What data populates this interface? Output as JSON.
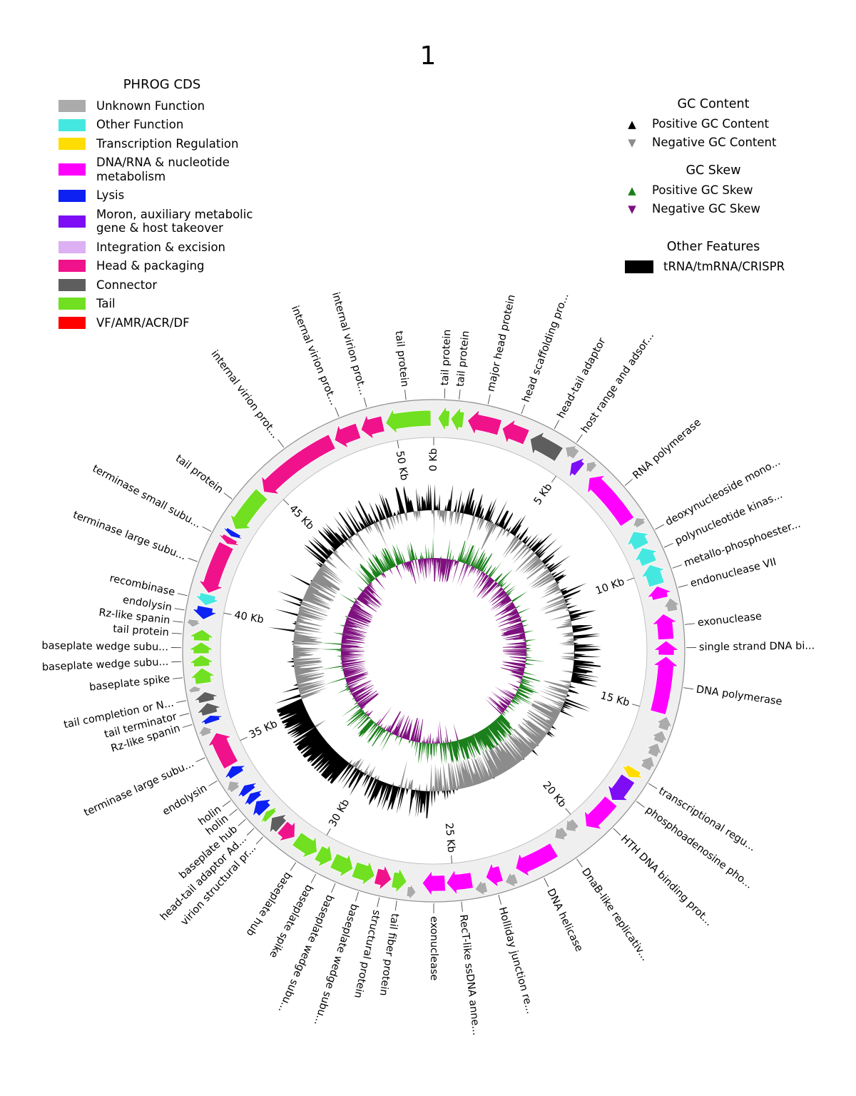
{
  "title": "1",
  "phrog_legend": {
    "title": "PHROG CDS",
    "items": [
      {
        "key": "unknown",
        "label": "Unknown Function",
        "color": "#ABABAB"
      },
      {
        "key": "other",
        "label": "Other Function",
        "color": "#45E8E0"
      },
      {
        "key": "transcription",
        "label": "Transcription Regulation",
        "color": "#FFDD00"
      },
      {
        "key": "dna",
        "label": "DNA/RNA & nucleotide\n metabolism",
        "color": "#FF00FF"
      },
      {
        "key": "lysis",
        "label": "Lysis",
        "color": "#0D21F2"
      },
      {
        "key": "moron",
        "label": "Moron, auxiliary metabolic\n gene & host takeover",
        "color": "#7D0DF4"
      },
      {
        "key": "integration",
        "label": "Integration & excision",
        "color": "#DCB0F2"
      },
      {
        "key": "head",
        "label": "Head & packaging",
        "color": "#F0128B"
      },
      {
        "key": "connector",
        "label": "Connector",
        "color": "#5E5E5E"
      },
      {
        "key": "tail",
        "label": "Tail",
        "color": "#70E021"
      },
      {
        "key": "vf",
        "label": "VF/AMR/ACR/DF",
        "color": "#FF0000"
      }
    ]
  },
  "gc_legend": {
    "content_title": "GC Content",
    "content_items": [
      {
        "label": "Positive GC Content",
        "color": "#000000",
        "dir": "up"
      },
      {
        "label": "Negative GC Content",
        "color": "#8C8C8C",
        "dir": "down"
      }
    ],
    "skew_title": "GC Skew",
    "skew_items": [
      {
        "label": "Positive GC Skew",
        "color": "#1B801B",
        "dir": "up"
      },
      {
        "label": "Negative GC Skew",
        "color": "#7E107E",
        "dir": "down"
      }
    ],
    "other_title": "Other Features",
    "other_items": [
      {
        "label": "tRNA/tmRNA/CRISPR",
        "color": "#000000"
      }
    ]
  },
  "chart_data": {
    "type": "circular-genome-map",
    "title": "1",
    "total_kb": 51.4,
    "tick_interval_kb": 5,
    "tick_unit": "Kb",
    "ticks": [
      "0 Kb",
      "5 Kb",
      "10 Kb",
      "15 Kb",
      "20 Kb",
      "25 Kb",
      "30 Kb",
      "35 Kb",
      "40 Kb",
      "45 Kb",
      "50 Kb"
    ],
    "category_colors": {
      "unknown": "#ABABAB",
      "other": "#45E8E0",
      "transcription": "#FFDD00",
      "dna": "#FF00FF",
      "lysis": "#0D21F2",
      "moron": "#7D0DF4",
      "integration": "#DCB0F2",
      "head": "#F0128B",
      "connector": "#5E5E5E",
      "tail": "#70E021",
      "vf": "#FF0000"
    },
    "genes": [
      {
        "s": 0.15,
        "e": 0.55,
        "cat": "tail",
        "dir": "ccw",
        "lane": "mid",
        "label": "tail protein"
      },
      {
        "s": 0.6,
        "e": 1.05,
        "cat": "tail",
        "dir": "ccw",
        "lane": "mid",
        "label": "tail protein"
      },
      {
        "s": 1.2,
        "e": 2.35,
        "cat": "head",
        "dir": "ccw",
        "lane": "mid",
        "label": "major head protein"
      },
      {
        "s": 2.45,
        "e": 3.35,
        "cat": "head",
        "dir": "ccw",
        "lane": "mid",
        "label": "head scaffolding pro..."
      },
      {
        "s": 3.5,
        "e": 4.65,
        "cat": "connector",
        "dir": "ccw",
        "lane": "mid",
        "label": "head-tail adaptor"
      },
      {
        "s": 4.7,
        "e": 5.15,
        "cat": "unknown",
        "dir": "ccw",
        "lane": "out",
        "label": "host range and adsor..."
      },
      {
        "s": 5.18,
        "e": 5.55,
        "cat": "moron",
        "dir": "ccw",
        "lane": "mid",
        "label": ""
      },
      {
        "s": 5.6,
        "e": 5.9,
        "cat": "unknown",
        "dir": "ccw",
        "lane": "out",
        "label": ""
      },
      {
        "s": 6.0,
        "e": 8.05,
        "cat": "dna",
        "dir": "ccw",
        "lane": "mid",
        "label": "RNA polymerase"
      },
      {
        "s": 8.1,
        "e": 8.4,
        "cat": "unknown",
        "dir": "ccw",
        "lane": "out",
        "label": ""
      },
      {
        "s": 8.45,
        "e": 9.05,
        "cat": "other",
        "dir": "ccw",
        "lane": "mid",
        "label": "deoxynucleoside mono..."
      },
      {
        "s": 9.1,
        "e": 9.7,
        "cat": "other",
        "dir": "ccw",
        "lane": "mid",
        "label": "polynucleotide kinas..."
      },
      {
        "s": 9.75,
        "e": 10.5,
        "cat": "other",
        "dir": "ccw",
        "lane": "mid",
        "label": "metallo-phosphoester..."
      },
      {
        "s": 10.55,
        "e": 11.0,
        "cat": "dna",
        "dir": "ccw",
        "lane": "mid",
        "label": "endonuclease VII"
      },
      {
        "s": 11.05,
        "e": 11.5,
        "cat": "unknown",
        "dir": "ccw",
        "lane": "out",
        "label": ""
      },
      {
        "s": 11.55,
        "e": 12.45,
        "cat": "dna",
        "dir": "ccw",
        "lane": "mid",
        "label": "exonuclease"
      },
      {
        "s": 12.5,
        "e": 13.0,
        "cat": "dna",
        "dir": "ccw",
        "lane": "mid",
        "label": "single strand DNA bi..."
      },
      {
        "s": 13.05,
        "e": 15.05,
        "cat": "dna",
        "dir": "ccw",
        "lane": "mid",
        "label": "DNA polymerase"
      },
      {
        "s": 15.1,
        "e": 15.55,
        "cat": "unknown",
        "dir": "ccw",
        "lane": "out",
        "label": ""
      },
      {
        "s": 15.6,
        "e": 16.0,
        "cat": "unknown",
        "dir": "ccw",
        "lane": "out",
        "label": ""
      },
      {
        "s": 16.05,
        "e": 16.5,
        "cat": "unknown",
        "dir": "ccw",
        "lane": "out",
        "label": ""
      },
      {
        "s": 16.55,
        "e": 17.0,
        "cat": "unknown",
        "dir": "ccw",
        "lane": "out",
        "label": ""
      },
      {
        "s": 17.2,
        "e": 17.55,
        "cat": "transcription",
        "dir": "cw",
        "lane": "mid",
        "label": "transcriptional regu..."
      },
      {
        "s": 17.6,
        "e": 18.55,
        "cat": "moron",
        "dir": "cw",
        "lane": "mid",
        "label": "phosphoadenosine pho..."
      },
      {
        "s": 18.6,
        "e": 19.85,
        "cat": "dna",
        "dir": "cw",
        "lane": "mid",
        "label": "HTH DNA binding prot..."
      },
      {
        "s": 20.05,
        "e": 20.5,
        "cat": "unknown",
        "dir": "cw",
        "lane": "in",
        "label": ""
      },
      {
        "s": 20.55,
        "e": 21.0,
        "cat": "unknown",
        "dir": "cw",
        "lane": "in",
        "label": "DnaB-like replicativ..."
      },
      {
        "s": 21.25,
        "e": 22.75,
        "cat": "dna",
        "dir": "cw",
        "lane": "mid",
        "label": "DNA helicase"
      },
      {
        "s": 22.85,
        "e": 23.25,
        "cat": "unknown",
        "dir": "cw",
        "lane": "out",
        "label": ""
      },
      {
        "s": 23.3,
        "e": 23.85,
        "cat": "dna",
        "dir": "cw",
        "lane": "mid",
        "label": "Holliday junction re..."
      },
      {
        "s": 23.9,
        "e": 24.3,
        "cat": "unknown",
        "dir": "cw",
        "lane": "out",
        "label": ""
      },
      {
        "s": 24.35,
        "e": 25.25,
        "cat": "dna",
        "dir": "cw",
        "lane": "mid",
        "label": "RecT-like ssDNA anne..."
      },
      {
        "s": 25.3,
        "e": 26.1,
        "cat": "dna",
        "dir": "cw",
        "lane": "mid",
        "label": "exonuclease"
      },
      {
        "s": 26.3,
        "e": 26.6,
        "cat": "unknown",
        "dir": "ccw",
        "lane": "out",
        "label": ""
      },
      {
        "s": 26.65,
        "e": 27.15,
        "cat": "tail",
        "dir": "ccw",
        "lane": "mid",
        "label": "tail fiber protein"
      },
      {
        "s": 27.2,
        "e": 27.75,
        "cat": "head",
        "dir": "ccw",
        "lane": "mid",
        "label": "structural protein"
      },
      {
        "s": 27.8,
        "e": 28.55,
        "cat": "tail",
        "dir": "ccw",
        "lane": "mid",
        "label": "baseplate wedge subu..."
      },
      {
        "s": 28.6,
        "e": 29.35,
        "cat": "tail",
        "dir": "ccw",
        "lane": "mid",
        "label": "baseplate wedge subu..."
      },
      {
        "s": 29.4,
        "e": 29.95,
        "cat": "tail",
        "dir": "ccw",
        "lane": "mid",
        "label": "baseplate spike"
      },
      {
        "s": 30.0,
        "e": 30.85,
        "cat": "tail",
        "dir": "ccw",
        "lane": "mid",
        "label": "baseplate hub"
      },
      {
        "s": 30.95,
        "e": 31.5,
        "cat": "head",
        "dir": "ccw",
        "lane": "mid",
        "label": ""
      },
      {
        "s": 31.55,
        "e": 32.0,
        "cat": "connector",
        "dir": "cw",
        "lane": "mid",
        "label": "virion structural pr..."
      },
      {
        "s": 32.05,
        "e": 32.3,
        "cat": "tail",
        "dir": "cw",
        "lane": "mid",
        "label": "head-tail adaptor Ad..."
      },
      {
        "s": 32.35,
        "e": 32.8,
        "cat": "lysis",
        "dir": "cw",
        "lane": "mid",
        "label": "baseplate hub"
      },
      {
        "s": 32.85,
        "e": 33.15,
        "cat": "lysis",
        "dir": "cw",
        "lane": "mid",
        "label": "holin"
      },
      {
        "s": 33.2,
        "e": 33.5,
        "cat": "lysis",
        "dir": "cw",
        "lane": "mid",
        "label": "holin"
      },
      {
        "s": 33.55,
        "e": 33.9,
        "cat": "unknown",
        "dir": "cw",
        "lane": "out",
        "label": ""
      },
      {
        "s": 33.95,
        "e": 34.3,
        "cat": "lysis",
        "dir": "cw",
        "lane": "mid",
        "label": "endolysin"
      },
      {
        "s": 34.35,
        "e": 35.6,
        "cat": "head",
        "dir": "cw",
        "lane": "mid",
        "label": "terminase large subu..."
      },
      {
        "s": 35.65,
        "e": 35.95,
        "cat": "unknown",
        "dir": "cw",
        "lane": "out",
        "label": ""
      },
      {
        "s": 36.0,
        "e": 36.25,
        "cat": "lysis",
        "dir": "cw",
        "lane": "mid",
        "label": "Rz-like spanin"
      },
      {
        "s": 36.3,
        "e": 36.7,
        "cat": "connector",
        "dir": "cw",
        "lane": "mid",
        "label": "tail terminator"
      },
      {
        "s": 36.75,
        "e": 37.1,
        "cat": "connector",
        "dir": "cw",
        "lane": "mid",
        "label": "tail completion or N..."
      },
      {
        "s": 37.15,
        "e": 37.35,
        "cat": "unknown",
        "dir": "cw",
        "lane": "out",
        "label": ""
      },
      {
        "s": 37.4,
        "e": 37.95,
        "cat": "tail",
        "dir": "cw",
        "lane": "mid",
        "label": "baseplate spike"
      },
      {
        "s": 38.0,
        "e": 38.4,
        "cat": "tail",
        "dir": "cw",
        "lane": "mid",
        "label": "baseplate wedge subu..."
      },
      {
        "s": 38.45,
        "e": 38.85,
        "cat": "tail",
        "dir": "cw",
        "lane": "mid",
        "label": "baseplate wedge subu..."
      },
      {
        "s": 38.9,
        "e": 39.3,
        "cat": "tail",
        "dir": "cw",
        "lane": "mid",
        "label": "tail protein"
      },
      {
        "s": 39.35,
        "e": 39.6,
        "cat": "unknown",
        "dir": "ccw",
        "lane": "out",
        "label": "Rz-like spanin"
      },
      {
        "s": 39.65,
        "e": 40.1,
        "cat": "lysis",
        "dir": "ccw",
        "lane": "mid",
        "label": "endolysin"
      },
      {
        "s": 40.15,
        "e": 40.55,
        "cat": "other",
        "dir": "ccw",
        "lane": "mid",
        "label": "recombinase"
      },
      {
        "s": 40.6,
        "e": 42.4,
        "cat": "head",
        "dir": "ccw",
        "lane": "mid",
        "label": "terminase large subu..."
      },
      {
        "s": 42.45,
        "e": 42.7,
        "cat": "head",
        "dir": "ccw",
        "lane": "mid",
        "label": "terminase small subu..."
      },
      {
        "s": 42.75,
        "e": 42.95,
        "cat": "lysis",
        "dir": "ccw",
        "lane": "mid",
        "label": ""
      },
      {
        "s": 43.05,
        "e": 44.6,
        "cat": "tail",
        "dir": "ccw",
        "lane": "mid",
        "label": "tail protein"
      },
      {
        "s": 44.7,
        "e": 47.7,
        "cat": "head",
        "dir": "ccw",
        "lane": "mid",
        "label": "internal virion prot..."
      },
      {
        "s": 47.8,
        "e": 48.7,
        "cat": "head",
        "dir": "ccw",
        "lane": "mid",
        "label": "internal virion prot..."
      },
      {
        "s": 48.8,
        "e": 49.6,
        "cat": "head",
        "dir": "ccw",
        "lane": "mid",
        "label": "internal virion prot..."
      },
      {
        "s": 49.7,
        "e": 51.3,
        "cat": "tail",
        "dir": "ccw",
        "lane": "mid",
        "label": "tail protein"
      }
    ],
    "gc_content_track": {
      "positive_color": "#000000",
      "negative_color": "#8C8C8C",
      "seed": 7,
      "bias_regions": [
        [
          0,
          5,
          0.15
        ],
        [
          5,
          11,
          -0.15
        ],
        [
          11,
          15,
          0.3
        ],
        [
          15,
          16.5,
          -0.2
        ],
        [
          16.5,
          24.5,
          -0.8
        ],
        [
          24.5,
          26,
          -0.35
        ],
        [
          26,
          31,
          0.4
        ],
        [
          31,
          35.7,
          1.2
        ],
        [
          35.7,
          44,
          -0.55
        ],
        [
          44,
          51.4,
          0.35
        ]
      ]
    },
    "gc_skew_track": {
      "positive_color": "#1B801B",
      "negative_color": "#7E107E",
      "seed": 13,
      "bias_regions": [
        [
          0,
          2,
          -0.3
        ],
        [
          2,
          4.5,
          0.3
        ],
        [
          4.5,
          8,
          -0.25
        ],
        [
          8,
          15,
          -0.5
        ],
        [
          15,
          17,
          0.2
        ],
        [
          17,
          19,
          -0.3
        ],
        [
          19,
          24,
          0.8
        ],
        [
          24,
          27,
          0.35
        ],
        [
          27,
          30,
          -0.4
        ],
        [
          30,
          33,
          0.5
        ],
        [
          33,
          45,
          -0.6
        ],
        [
          45,
          49,
          0.4
        ],
        [
          49,
          51.4,
          -0.3
        ]
      ]
    }
  }
}
